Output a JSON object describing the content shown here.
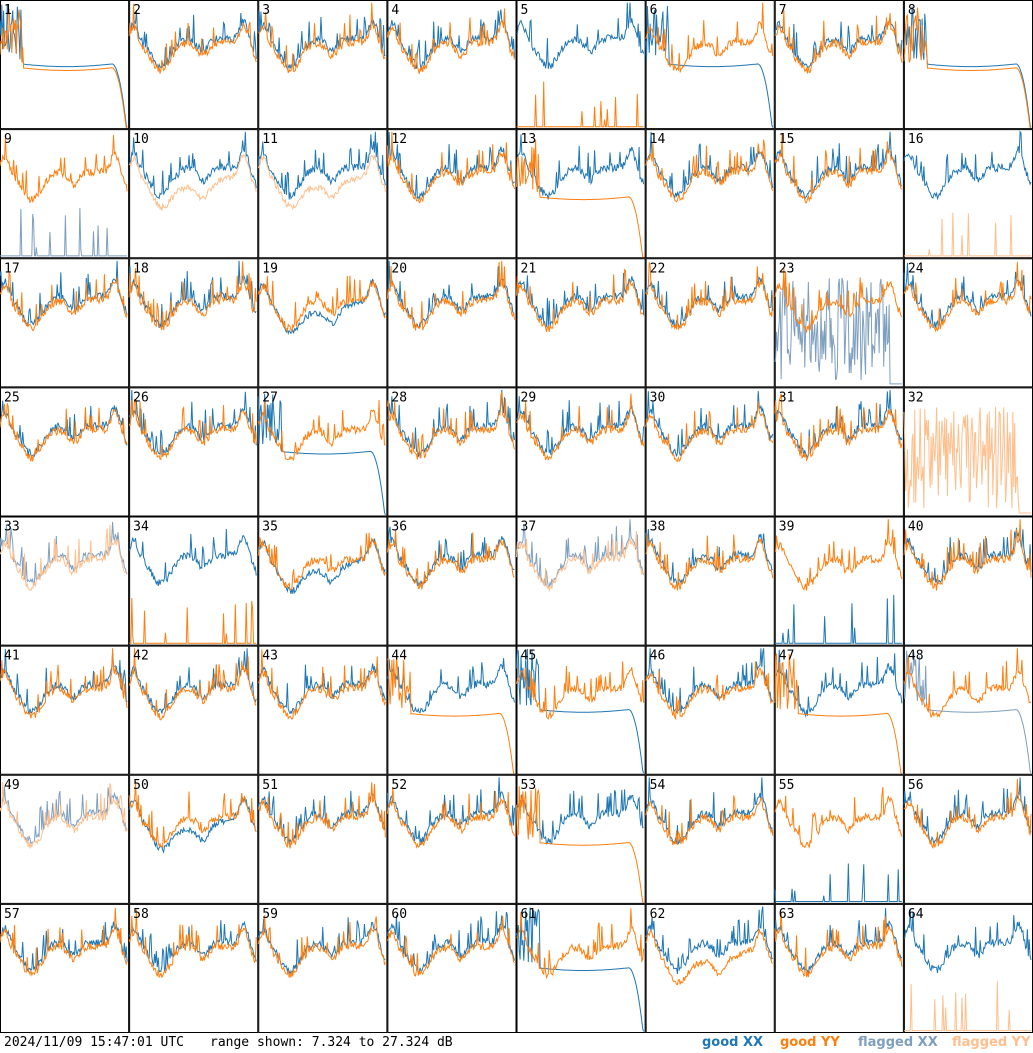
{
  "footer": {
    "timestamp": "2024/11/09 15:47:01 UTC",
    "range_text": "range shown: 7.324 to 27.324 dB"
  },
  "legend": [
    {
      "text": "good XX",
      "color": "#1f77b4"
    },
    {
      "text": "good YY",
      "color": "#ff7f0e"
    },
    {
      "text": "flagged XX",
      "color": "#7f9fbf"
    },
    {
      "text": "flagged YY",
      "color": "#ffbf8c"
    }
  ],
  "chart_data": {
    "type": "line",
    "layout": "small-multiples 8x8",
    "ylim": [
      7.324,
      27.324
    ],
    "yunits": "dB",
    "grid": false,
    "legend_placement": "bottom-right",
    "series_styles": {
      "good_xx": "#1f77b4",
      "good_yy": "#ff7f0e",
      "flagged_xx": "#7f9fbf",
      "flagged_yy": "#ffbf8c"
    },
    "panels": [
      {
        "label": "1",
        "xx": "flatdrop",
        "yy": "flatdrop",
        "fx": false,
        "fy": false
      },
      {
        "label": "2",
        "xx": "normal",
        "yy": "normal",
        "fx": false,
        "fy": false
      },
      {
        "label": "3",
        "xx": "normal",
        "yy": "normal",
        "fx": false,
        "fy": false
      },
      {
        "label": "4",
        "xx": "normal",
        "yy": "normal",
        "fx": false,
        "fy": false
      },
      {
        "label": "5",
        "xx": "normal",
        "yy": "spikeslow",
        "fx": false,
        "fy": false
      },
      {
        "label": "6",
        "xx": "flatdrop",
        "yy": "normal",
        "fx": false,
        "fy": false
      },
      {
        "label": "7",
        "xx": "normal",
        "yy": "normal",
        "fx": false,
        "fy": false
      },
      {
        "label": "8",
        "xx": "flatdrop",
        "yy": "flatdrop",
        "fx": false,
        "fy": false
      },
      {
        "label": "9",
        "xx": "spikeslow",
        "yy": "normal",
        "fx": true,
        "fy": false
      },
      {
        "label": "10",
        "xx": "normal",
        "yy": "low",
        "fx": false,
        "fy": true
      },
      {
        "label": "11",
        "xx": "normal",
        "yy": "low",
        "fx": false,
        "fy": true
      },
      {
        "label": "12",
        "xx": "normal",
        "yy": "normal",
        "fx": false,
        "fy": false
      },
      {
        "label": "13",
        "xx": "normal",
        "yy": "flatdrop",
        "fx": false,
        "fy": false
      },
      {
        "label": "14",
        "xx": "normal",
        "yy": "normal",
        "fx": false,
        "fy": false
      },
      {
        "label": "15",
        "xx": "normal",
        "yy": "normal",
        "fx": false,
        "fy": false
      },
      {
        "label": "16",
        "xx": "normal",
        "yy": "spikeslow",
        "fx": false,
        "fy": true
      },
      {
        "label": "17",
        "xx": "normal",
        "yy": "normal",
        "fx": false,
        "fy": false
      },
      {
        "label": "18",
        "xx": "normal",
        "yy": "normal",
        "fx": false,
        "fy": false
      },
      {
        "label": "19",
        "xx": "low",
        "yy": "normal",
        "fx": false,
        "fy": false
      },
      {
        "label": "20",
        "xx": "normal",
        "yy": "normal",
        "fx": false,
        "fy": false
      },
      {
        "label": "21",
        "xx": "normal",
        "yy": "normal",
        "fx": false,
        "fy": false
      },
      {
        "label": "22",
        "xx": "normal",
        "yy": "normal",
        "fx": false,
        "fy": false
      },
      {
        "label": "23",
        "xx": "noisy",
        "yy": "normal",
        "fx": true,
        "fy": false
      },
      {
        "label": "24",
        "xx": "normal",
        "yy": "normal",
        "fx": false,
        "fy": false
      },
      {
        "label": "25",
        "xx": "normal",
        "yy": "normal",
        "fx": false,
        "fy": false
      },
      {
        "label": "26",
        "xx": "normal",
        "yy": "normal",
        "fx": false,
        "fy": false
      },
      {
        "label": "27",
        "xx": "flatdrop",
        "yy": "normal",
        "fx": false,
        "fy": false
      },
      {
        "label": "28",
        "xx": "normal",
        "yy": "normal",
        "fx": false,
        "fy": false
      },
      {
        "label": "29",
        "xx": "normal",
        "yy": "normal",
        "fx": false,
        "fy": false
      },
      {
        "label": "30",
        "xx": "normal",
        "yy": "normal",
        "fx": false,
        "fy": false
      },
      {
        "label": "31",
        "xx": "normal",
        "yy": "normal",
        "fx": false,
        "fy": false
      },
      {
        "label": "32",
        "xx": "none",
        "yy": "noisy",
        "fx": false,
        "fy": true
      },
      {
        "label": "33",
        "xx": "normal",
        "yy": "normal",
        "fx": true,
        "fy": true
      },
      {
        "label": "34",
        "xx": "normal",
        "yy": "spikeslow",
        "fx": false,
        "fy": false
      },
      {
        "label": "35",
        "xx": "low",
        "yy": "normal",
        "fx": false,
        "fy": false
      },
      {
        "label": "36",
        "xx": "normal",
        "yy": "normal",
        "fx": false,
        "fy": false
      },
      {
        "label": "37",
        "xx": "normal",
        "yy": "normal",
        "fx": true,
        "fy": true
      },
      {
        "label": "38",
        "xx": "normal",
        "yy": "normal",
        "fx": false,
        "fy": false
      },
      {
        "label": "39",
        "xx": "spikeslow",
        "yy": "normal",
        "fx": false,
        "fy": false
      },
      {
        "label": "40",
        "xx": "normal",
        "yy": "normal",
        "fx": false,
        "fy": false
      },
      {
        "label": "41",
        "xx": "normal",
        "yy": "normal",
        "fx": false,
        "fy": false
      },
      {
        "label": "42",
        "xx": "normal",
        "yy": "normal",
        "fx": false,
        "fy": false
      },
      {
        "label": "43",
        "xx": "normal",
        "yy": "normal",
        "fx": false,
        "fy": false
      },
      {
        "label": "44",
        "xx": "normal",
        "yy": "flatdrop",
        "fx": false,
        "fy": false
      },
      {
        "label": "45",
        "xx": "flatdrop",
        "yy": "normal",
        "fx": false,
        "fy": false
      },
      {
        "label": "46",
        "xx": "normal",
        "yy": "normal",
        "fx": false,
        "fy": false
      },
      {
        "label": "47",
        "xx": "normal",
        "yy": "flatdrop",
        "fx": false,
        "fy": false
      },
      {
        "label": "48",
        "xx": "flatdrop",
        "yy": "normal",
        "fx": true,
        "fy": false
      },
      {
        "label": "49",
        "xx": "normal",
        "yy": "normal",
        "fx": true,
        "fy": true
      },
      {
        "label": "50",
        "xx": "low",
        "yy": "normal",
        "fx": false,
        "fy": false
      },
      {
        "label": "51",
        "xx": "normal",
        "yy": "normal",
        "fx": false,
        "fy": false
      },
      {
        "label": "52",
        "xx": "normal",
        "yy": "normal",
        "fx": false,
        "fy": false
      },
      {
        "label": "53",
        "xx": "normal",
        "yy": "flatdrop",
        "fx": false,
        "fy": false
      },
      {
        "label": "54",
        "xx": "normal",
        "yy": "normal",
        "fx": false,
        "fy": false
      },
      {
        "label": "55",
        "xx": "spikeslow",
        "yy": "normal",
        "fx": false,
        "fy": false
      },
      {
        "label": "56",
        "xx": "normal",
        "yy": "normal",
        "fx": false,
        "fy": false
      },
      {
        "label": "57",
        "xx": "normal",
        "yy": "normal",
        "fx": false,
        "fy": false
      },
      {
        "label": "58",
        "xx": "normal",
        "yy": "normal",
        "fx": false,
        "fy": false
      },
      {
        "label": "59",
        "xx": "normal",
        "yy": "normal",
        "fx": false,
        "fy": false
      },
      {
        "label": "60",
        "xx": "normal",
        "yy": "normal",
        "fx": false,
        "fy": false
      },
      {
        "label": "61",
        "xx": "flatdrop",
        "yy": "normal",
        "fx": false,
        "fy": false
      },
      {
        "label": "62",
        "xx": "normal",
        "yy": "low",
        "fx": false,
        "fy": false
      },
      {
        "label": "63",
        "xx": "normal",
        "yy": "normal",
        "fx": false,
        "fy": false
      },
      {
        "label": "64",
        "xx": "normal",
        "yy": "spikeslow",
        "fx": false,
        "fy": true
      }
    ]
  }
}
